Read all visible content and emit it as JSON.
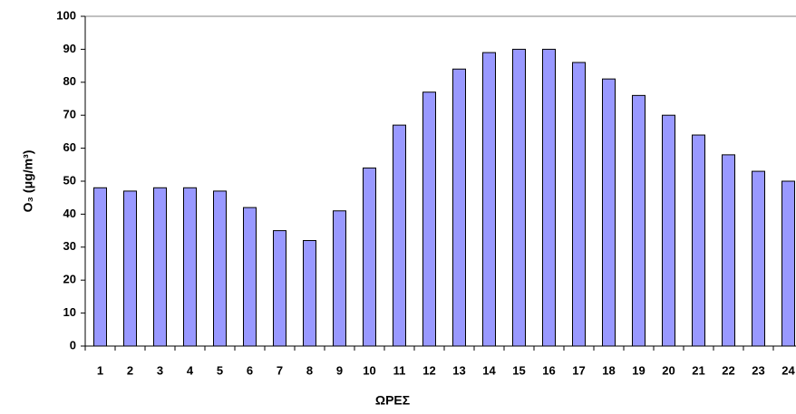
{
  "chart_data": {
    "type": "bar",
    "xlabel": "ΩΡΕΣ",
    "ylabel": "O₃ (μg/m³)",
    "categories": [
      "1",
      "2",
      "3",
      "4",
      "5",
      "6",
      "7",
      "8",
      "9",
      "10",
      "11",
      "12",
      "13",
      "14",
      "15",
      "16",
      "17",
      "18",
      "19",
      "20",
      "21",
      "22",
      "23",
      "24"
    ],
    "values": [
      48,
      47,
      48,
      48,
      47,
      42,
      35,
      32,
      41,
      54,
      67,
      77,
      84,
      89,
      90,
      90,
      86,
      81,
      76,
      70,
      64,
      58,
      53,
      50
    ],
    "color": "#9999ff",
    "ylim": [
      0,
      100
    ],
    "yticks": [
      0,
      10,
      20,
      30,
      40,
      50,
      60,
      70,
      80,
      90,
      100
    ]
  }
}
